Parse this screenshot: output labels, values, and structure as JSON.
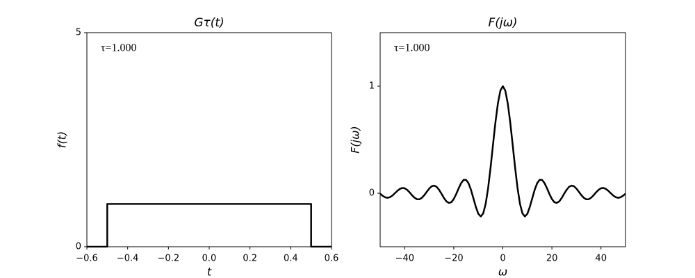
{
  "chart_data": [
    {
      "type": "line",
      "title": "Gτ(t)",
      "x_label": "t",
      "y_label": "f(t)",
      "annotation": "τ=1.000",
      "annotation_color": "#ff0000",
      "x": [
        -0.6,
        -0.5,
        -0.5,
        0.5,
        0.5,
        0.6
      ],
      "values": [
        0,
        0,
        1,
        1,
        0,
        0
      ],
      "color": "#000000",
      "xlim": [
        -0.6,
        0.6
      ],
      "ylim": [
        0,
        5
      ],
      "xticks": [
        {
          "value": -0.6,
          "label": "−0.6"
        },
        {
          "value": -0.4,
          "label": "−0.4"
        },
        {
          "value": -0.2,
          "label": "−0.2"
        },
        {
          "value": 0,
          "label": "0.0"
        },
        0.2,
        0.4,
        0.6
      ],
      "yticks": [
        0,
        5
      ]
    },
    {
      "type": "line",
      "title": "F(jω)",
      "x_label": "ω",
      "y_label": "F(jω)",
      "annotation": "τ=1.000",
      "annotation_color": "#ff0000",
      "x": [
        -50,
        -49,
        -48,
        -47,
        -46,
        -45,
        -44,
        -43,
        -42,
        -41,
        -40,
        -39,
        -38,
        -37,
        -36,
        -35,
        -34,
        -33,
        -32,
        -31,
        -30,
        -29,
        -28,
        -27,
        -26,
        -25,
        -24,
        -23,
        -22,
        -21,
        -20,
        -19,
        -18,
        -17,
        -16,
        -15,
        -14,
        -13,
        -12,
        -11,
        -10,
        -9,
        -8,
        -7,
        -6,
        -5,
        -4,
        -3,
        -2,
        -1,
        0,
        1,
        2,
        3,
        4,
        5,
        6,
        7,
        8,
        9,
        10,
        11,
        12,
        13,
        14,
        15,
        16,
        17,
        18,
        19,
        20,
        21,
        22,
        23,
        24,
        25,
        26,
        27,
        28,
        29,
        30,
        31,
        32,
        33,
        34,
        35,
        36,
        37,
        38,
        39,
        40,
        41,
        42,
        43,
        44,
        45,
        46,
        47,
        48,
        49,
        50
      ],
      "values": [
        -0.005,
        -0.024,
        -0.038,
        -0.043,
        -0.037,
        -0.022,
        0,
        0.022,
        0.04,
        0.049,
        0.046,
        0.031,
        0.008,
        -0.019,
        -0.042,
        -0.056,
        -0.057,
        -0.043,
        -0.018,
        0.013,
        0.043,
        0.065,
        0.071,
        0.06,
        0.032,
        -0.005,
        -0.045,
        -0.076,
        -0.091,
        -0.084,
        -0.054,
        -0.008,
        0.046,
        0.094,
        0.124,
        0.125,
        0.094,
        0.033,
        -0.047,
        -0.128,
        -0.192,
        -0.217,
        -0.189,
        -0.1,
        0.047,
        0.239,
        0.455,
        0.665,
        0.841,
        0.959,
        1,
        0.959,
        0.841,
        0.665,
        0.455,
        0.239,
        0.047,
        -0.1,
        -0.189,
        -0.217,
        -0.192,
        -0.128,
        -0.047,
        0.033,
        0.094,
        0.125,
        0.124,
        0.094,
        0.046,
        -0.008,
        -0.054,
        -0.084,
        -0.091,
        -0.076,
        -0.045,
        -0.005,
        0.032,
        0.06,
        0.071,
        0.065,
        0.043,
        0.013,
        -0.018,
        -0.043,
        -0.057,
        -0.056,
        -0.042,
        -0.019,
        0.008,
        0.031,
        0.046,
        0.049,
        0.04,
        0.022,
        0,
        -0.022,
        -0.037,
        -0.043,
        -0.038,
        -0.024,
        -0.005
      ],
      "color": "#000000",
      "xlim": [
        -50,
        50
      ],
      "ylim": [
        -0.5,
        1.5
      ],
      "xticks": [
        {
          "value": -40,
          "label": "−40"
        },
        {
          "value": -20,
          "label": "−20"
        },
        0,
        20,
        40
      ],
      "yticks": [
        0,
        1
      ]
    }
  ]
}
